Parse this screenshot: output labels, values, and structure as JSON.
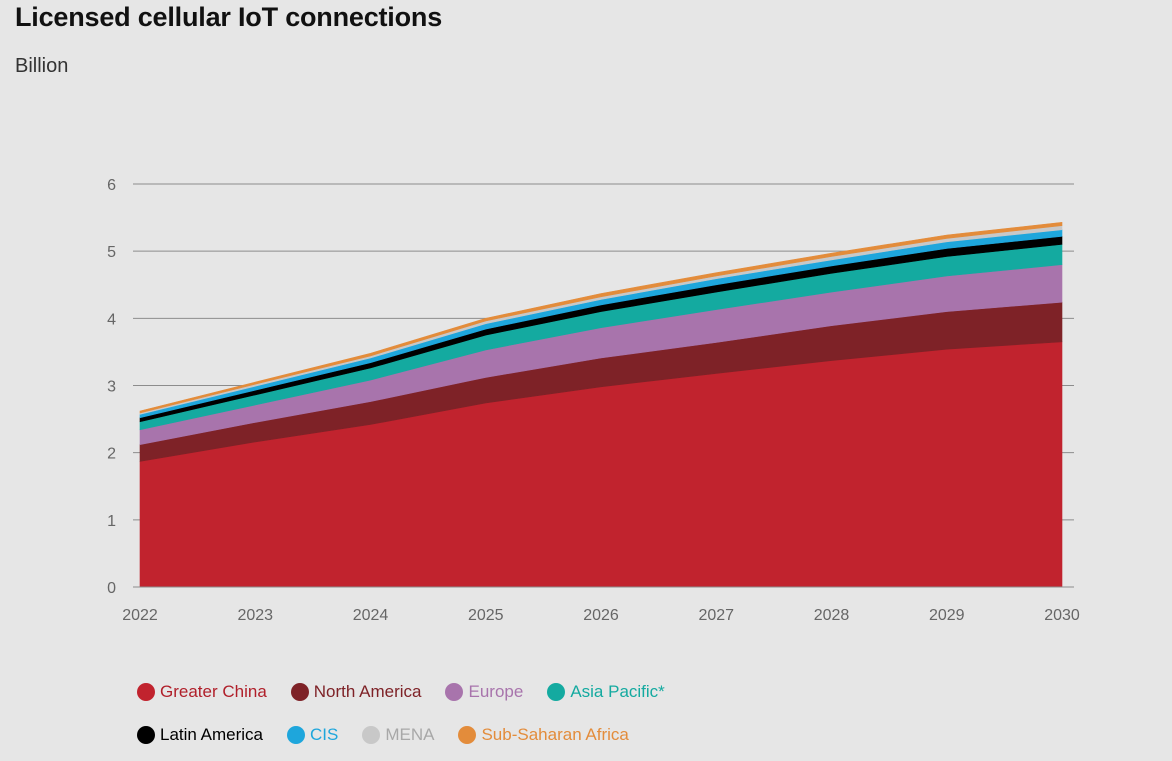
{
  "title": "Licensed cellular IoT connections",
  "subtitle": "Billion",
  "chart_data": {
    "type": "area",
    "stacked": true,
    "x": [
      "2022",
      "2023",
      "2024",
      "2025",
      "2026",
      "2027",
      "2028",
      "2029",
      "2030"
    ],
    "ylim": [
      0,
      6
    ],
    "yticks": [
      "0",
      "1",
      "2",
      "3",
      "4",
      "5",
      "6"
    ],
    "grid": true,
    "legend_position": "bottom",
    "series": [
      {
        "name": "Greater China",
        "color": "#c1232e",
        "text_color": "#b01f2a",
        "values": [
          1.87,
          2.16,
          2.42,
          2.74,
          2.98,
          3.18,
          3.37,
          3.54,
          3.65
        ]
      },
      {
        "name": "North America",
        "color": "#7e2227",
        "text_color": "#7e2227",
        "values": [
          0.25,
          0.29,
          0.34,
          0.38,
          0.43,
          0.46,
          0.52,
          0.56,
          0.59
        ]
      },
      {
        "name": "Europe",
        "color": "#a874ac",
        "text_color": "#a874ac",
        "values": [
          0.22,
          0.26,
          0.32,
          0.41,
          0.45,
          0.49,
          0.5,
          0.53,
          0.56
        ]
      },
      {
        "name": "Asia Pacific*",
        "color": "#14aaa0",
        "text_color": "#14aaa0",
        "values": [
          0.12,
          0.15,
          0.18,
          0.22,
          0.24,
          0.26,
          0.28,
          0.29,
          0.3
        ]
      },
      {
        "name": "Latin America",
        "color": "#000000",
        "text_color": "#000000",
        "values": [
          0.06,
          0.07,
          0.08,
          0.09,
          0.1,
          0.11,
          0.11,
          0.12,
          0.12
        ]
      },
      {
        "name": "CIS",
        "color": "#1ea6dc",
        "text_color": "#1ea6dc",
        "values": [
          0.05,
          0.06,
          0.07,
          0.08,
          0.08,
          0.09,
          0.09,
          0.1,
          0.1
        ]
      },
      {
        "name": "MENA",
        "color": "#c8c8c8",
        "text_color": "#a8a8a8",
        "values": [
          0.02,
          0.03,
          0.03,
          0.04,
          0.04,
          0.04,
          0.05,
          0.05,
          0.06
        ]
      },
      {
        "name": "Sub-Saharan Africa",
        "color": "#e38c3b",
        "text_color": "#e38c3b",
        "values": [
          0.03,
          0.03,
          0.04,
          0.04,
          0.05,
          0.05,
          0.05,
          0.05,
          0.05
        ]
      }
    ]
  }
}
